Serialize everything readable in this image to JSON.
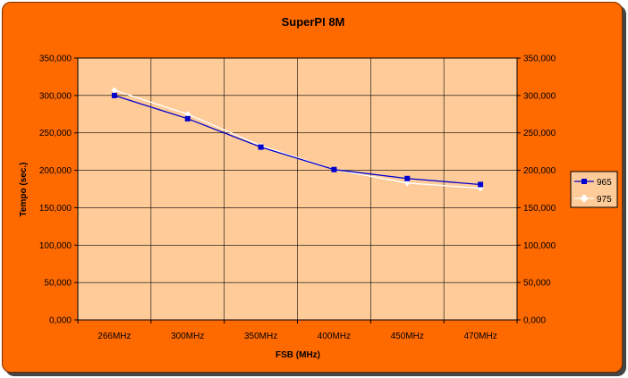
{
  "chart_data": {
    "type": "line",
    "title": "SuperPI 8M",
    "xlabel": "FSB (MHz)",
    "ylabel": "Tempo (sec.)",
    "categories": [
      "266MHz",
      "300MHz",
      "350MHz",
      "400MHz",
      "450MHz",
      "470MHz"
    ],
    "ylim": [
      0,
      350000
    ],
    "yticks": [
      "0,000",
      "50,000",
      "100,000",
      "150,000",
      "200,000",
      "250,000",
      "300,000",
      "350,000"
    ],
    "secondary_yticks": [
      "0,000",
      "50,000",
      "100,000",
      "150,000",
      "200,000",
      "250,000",
      "300,000",
      "350,000"
    ],
    "grid": true,
    "legend_position": "right",
    "series": [
      {
        "name": "965",
        "color": "#0000cc",
        "marker": "square",
        "values": [
          300000,
          269000,
          231000,
          201000,
          189000,
          181000
        ]
      },
      {
        "name": "975",
        "color": "#ffffff",
        "marker": "diamond",
        "values": [
          307000,
          275000,
          233000,
          201000,
          183000,
          176000
        ]
      }
    ],
    "colors": {
      "frame": "#ff6a00",
      "plot_area": "#ffcc99",
      "grid": "#000000"
    }
  }
}
